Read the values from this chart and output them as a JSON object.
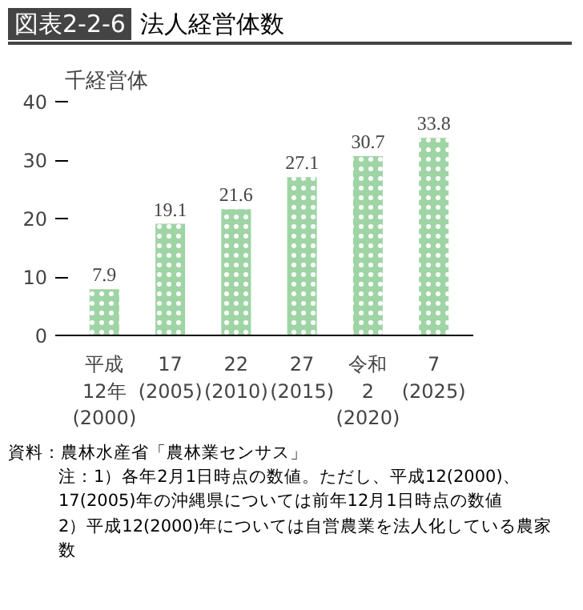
{
  "chart_data": {
    "type": "bar",
    "title": "図表2-2-6 法人経営体数",
    "ylabel": "千経営体",
    "categories": [
      "平成\n12年\n(2000)",
      "17\n(2005)",
      "22\n(2010)",
      "27\n(2015)",
      "令和\n2\n(2020)",
      "7\n(2025)"
    ],
    "values": [
      7.9,
      19.1,
      21.6,
      27.1,
      30.7,
      33.8
    ],
    "color": "#9fd4a5",
    "ylim": [
      0,
      40
    ],
    "yticks": [
      0,
      10,
      20,
      30,
      40
    ],
    "grid": false,
    "data_labels": true,
    "annotations": [
      "資料：農林水産省「農林業センサス」",
      "注：1）各年2月1日時点の数値。ただし、平成12(2000)、17(2005)年の沖縄県については前年12月1日時点の数値",
      "2）平成12(2000)年については自営農業を法人化している農家数"
    ]
  }
}
